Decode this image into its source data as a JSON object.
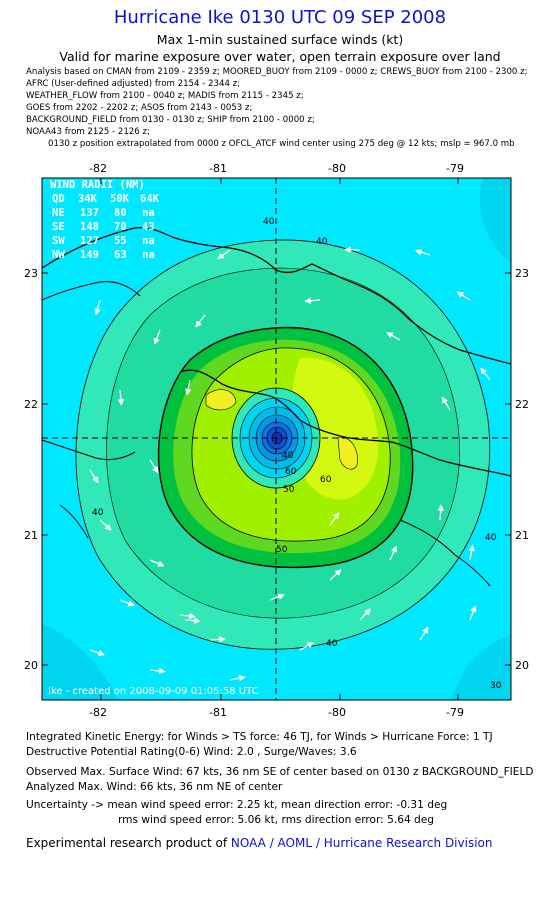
{
  "header": {
    "title": "Hurricane Ike 0130 UTC 09 SEP 2008",
    "subtitle": "Max 1-min sustained surface winds (kt)",
    "valid_line": "Valid for marine exposure over water, open terrain exposure over land"
  },
  "analysis_lines": [
    "Analysis based on  CMAN from 2109 - 2359 z;  MOORED_BUOY from 2109 - 0000 z;  CREWS_BUOY from 2100 - 2300 z;",
    "AFRC (User-defined adjusted) from 2154 - 2344 z;",
    "WEATHER_FLOW from 2100 - 0040 z;  MADIS from 2115 - 2345 z;",
    "GOES from 2202 - 2202 z;  ASOS from 2143 - 0053 z;",
    "BACKGROUND_FIELD from 0130 - 0130 z;  SHIP from 2100 - 0000 z;",
    "NOAA43 from 2125 - 2126 z;"
  ],
  "position_line": "0130 z position extrapolated from 0000 z OFCL_ATCF wind center using 275 deg @ 12 kts;  mslp = 967.0 mb",
  "map": {
    "lon_ticks": [
      "-82",
      "-81",
      "-80",
      "-79"
    ],
    "lat_ticks": [
      "23",
      "22",
      "21",
      "20"
    ],
    "center": {
      "lon": -80.5,
      "lat": 21.73
    },
    "contour_labels": [
      "40",
      "40",
      "40",
      "40",
      "50",
      "50",
      "60",
      "60",
      "40",
      "30",
      "40"
    ],
    "credit": "Ike - created on 2008-09-09 01:05:58 UTC",
    "colors": {
      "outer": "#00e8ff",
      "band30": "#00d4ef",
      "band40": "#30e8b8",
      "band50": "#00c040",
      "band60": "#a0f000",
      "band70": "#e8ff20",
      "core": "#1060e0",
      "coast": "#000000"
    }
  },
  "wind_radii": {
    "title": "WIND RADII (NM)",
    "header": [
      "QD",
      "34K",
      "50K",
      "64K"
    ],
    "rows": [
      [
        "NE",
        "137",
        "80",
        "na"
      ],
      [
        "SE",
        "148",
        "70",
        "43"
      ],
      [
        "SW",
        "127",
        "55",
        "na"
      ],
      [
        "NW",
        "149",
        "63",
        "na"
      ]
    ]
  },
  "footer": {
    "ike_line": "Integrated Kinetic Energy:  for Winds > TS force: 46 TJ,  for Winds > Hurricane Force: 1 TJ",
    "dp_line": "Destructive Potential Rating(0-6)   Wind: 2.0 , Surge/Waves: 3.6",
    "obs_line": "Observed Max. Surface Wind: 67 kts, 36 nm SE of center based on 0130 z BACKGROUND_FIELD",
    "analyzed_line": "Analyzed Max. Wind: 66 kts, 36 nm NE of center",
    "uncert_line1": "Uncertainty -> mean wind speed error: 2.25 kt,   mean direction error:  -0.31 deg",
    "uncert_line2": "rms wind speed error: 5.06 kt,   rms direction error: 5.64 deg",
    "credit_prefix": "Experimental research product of ",
    "credit_org": "NOAA / AOML / Hurricane Research Division"
  }
}
